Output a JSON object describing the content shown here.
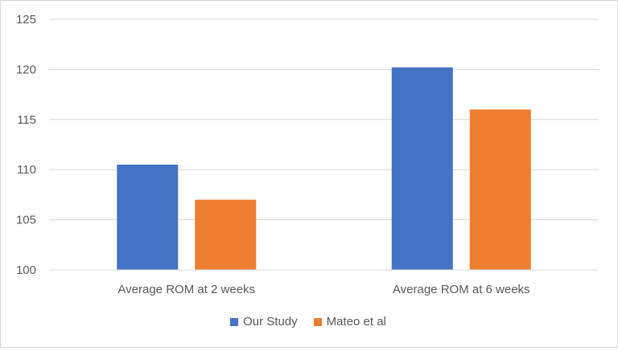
{
  "chart_data": {
    "type": "bar",
    "categories": [
      "Average ROM at 2 weeks",
      "Average ROM at 6 weeks"
    ],
    "series": [
      {
        "name": "Our Study",
        "values": [
          110.5,
          120.2
        ],
        "color": "#4472C4"
      },
      {
        "name": "Mateo et al",
        "values": [
          107.0,
          116.0
        ],
        "color": "#ED7D31"
      }
    ],
    "ylim": [
      100,
      125
    ],
    "yticks": [
      100,
      105,
      110,
      115,
      120,
      125
    ],
    "grid": true,
    "legend_position": "bottom"
  }
}
